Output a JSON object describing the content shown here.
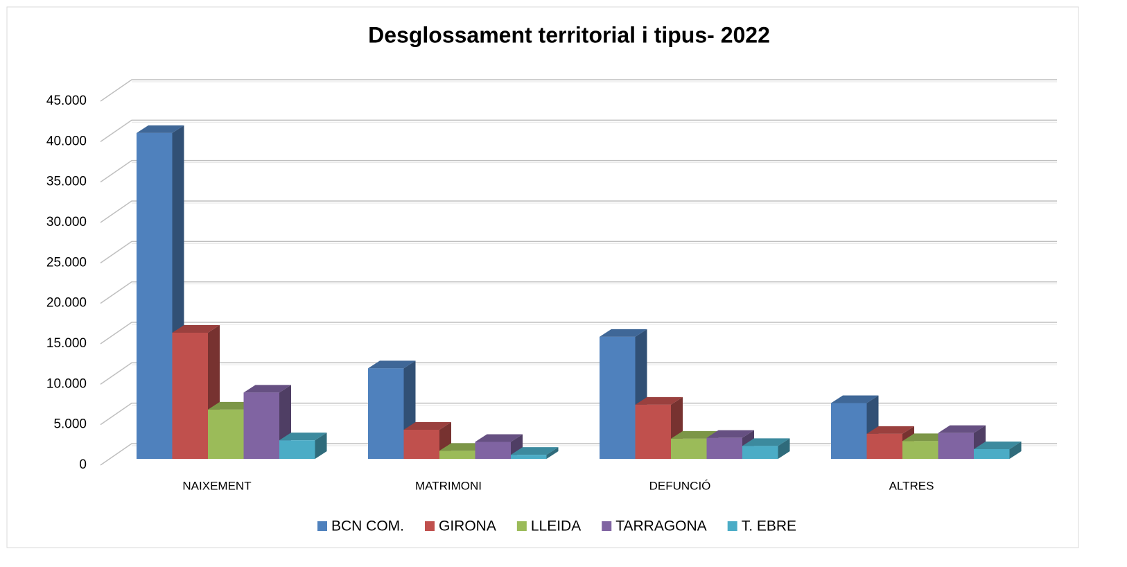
{
  "chart_data": {
    "type": "bar3d",
    "title": "Desglossament territorial i tipus- 2022",
    "categories": [
      "NAIXEMENT",
      "MATRIMONI",
      "DEFUNCIÓ",
      "ALTRES"
    ],
    "series": [
      {
        "name": "BCN COM.",
        "color": "#4f81bd",
        "values": [
          40300,
          11200,
          15100,
          6900
        ]
      },
      {
        "name": "GIRONA",
        "color": "#c0504d",
        "values": [
          15600,
          3600,
          6700,
          3100
        ]
      },
      {
        "name": "LLEIDA",
        "color": "#9bbb59",
        "values": [
          6100,
          1000,
          2500,
          2200
        ]
      },
      {
        "name": "TARRAGONA",
        "color": "#8064a2",
        "values": [
          8200,
          2100,
          2600,
          3200
        ]
      },
      {
        "name": "T. EBRE",
        "color": "#4bacc6",
        "values": [
          2300,
          500,
          1600,
          1200
        ]
      }
    ],
    "ylim": [
      0,
      45000
    ],
    "yticks": [
      0,
      {
        "value": 5000,
        "label": "5.000"
      },
      {
        "value": 10000,
        "label": "10.000"
      },
      {
        "value": 15000,
        "label": "15.000"
      },
      {
        "value": 20000,
        "label": "20.000"
      },
      {
        "value": 25000,
        "label": "25.000"
      },
      {
        "value": 30000,
        "label": "30.000"
      },
      {
        "value": 35000,
        "label": "35.000"
      },
      {
        "value": 40000,
        "label": "40.000"
      },
      {
        "value": 45000,
        "label": "45.000"
      }
    ],
    "grid": true,
    "legend": "bottom"
  }
}
